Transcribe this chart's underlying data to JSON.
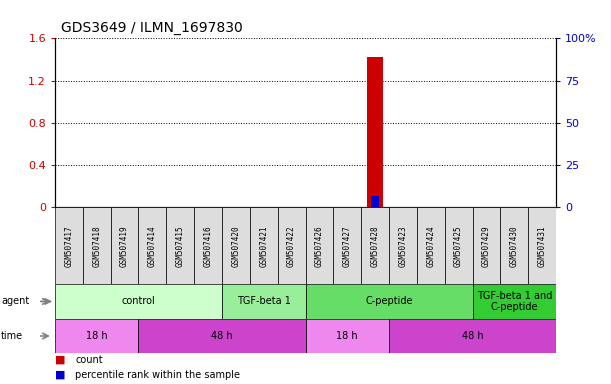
{
  "title": "GDS3649 / ILMN_1697830",
  "samples": [
    "GSM507417",
    "GSM507418",
    "GSM507419",
    "GSM507414",
    "GSM507415",
    "GSM507416",
    "GSM507420",
    "GSM507421",
    "GSM507422",
    "GSM507426",
    "GSM507427",
    "GSM507428",
    "GSM507423",
    "GSM507424",
    "GSM507425",
    "GSM507429",
    "GSM507430",
    "GSM507431"
  ],
  "count_values": [
    0,
    0,
    0,
    0,
    0,
    0,
    0,
    0,
    0,
    0,
    0,
    1.42,
    0,
    0,
    0,
    0,
    0,
    0
  ],
  "percentile_values": [
    0,
    0,
    0,
    0,
    0,
    0,
    0,
    0,
    0,
    0,
    0,
    7,
    0,
    0,
    0,
    0,
    0,
    0
  ],
  "ylim_left": [
    0,
    1.6
  ],
  "ylim_right": [
    0,
    100
  ],
  "yticks_left": [
    0,
    0.4,
    0.8,
    1.2,
    1.6
  ],
  "ytick_labels_left": [
    "0",
    "0.4",
    "0.8",
    "1.2",
    "1.6"
  ],
  "yticks_right": [
    0,
    25,
    50,
    75,
    100
  ],
  "ytick_labels_right": [
    "0",
    "25",
    "50",
    "75",
    "100%"
  ],
  "agent_groups": [
    {
      "label": "control",
      "start": 0,
      "end": 6,
      "color": "#ccffcc"
    },
    {
      "label": "TGF-beta 1",
      "start": 6,
      "end": 9,
      "color": "#99ee99"
    },
    {
      "label": "C-peptide",
      "start": 9,
      "end": 15,
      "color": "#66dd66"
    },
    {
      "label": "TGF-beta 1 and\nC-peptide",
      "start": 15,
      "end": 18,
      "color": "#33cc33"
    }
  ],
  "time_groups": [
    {
      "label": "18 h",
      "start": 0,
      "end": 3,
      "color": "#ee88ee"
    },
    {
      "label": "48 h",
      "start": 3,
      "end": 9,
      "color": "#cc44cc"
    },
    {
      "label": "18 h",
      "start": 9,
      "end": 12,
      "color": "#ee88ee"
    },
    {
      "label": "48 h",
      "start": 12,
      "end": 18,
      "color": "#cc44cc"
    }
  ],
  "count_color": "#cc0000",
  "percentile_color": "#0000cc",
  "bar_width": 0.6,
  "background_color": "#ffffff",
  "sample_box_color": "#dddddd"
}
